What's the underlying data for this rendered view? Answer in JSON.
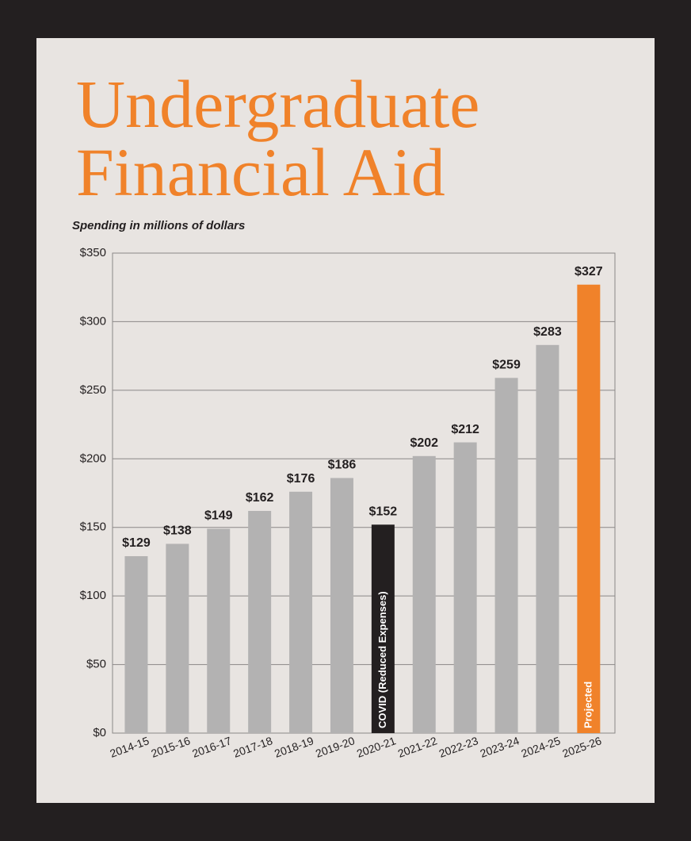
{
  "chart_data": {
    "type": "bar",
    "title": "Undergraduate Financial Aid",
    "subtitle": "Spending in millions of dollars",
    "categories": [
      "2014-15",
      "2015-16",
      "2016-17",
      "2017-18",
      "2018-19",
      "2019-20",
      "2020-21",
      "2021-22",
      "2022-23",
      "2023-24",
      "2024-25",
      "2025-26"
    ],
    "values": [
      129,
      138,
      149,
      162,
      176,
      186,
      152,
      202,
      212,
      259,
      283,
      327
    ],
    "value_labels": [
      "$129",
      "$138",
      "$149",
      "$162",
      "$176",
      "$186",
      "$152",
      "$202",
      "$212",
      "$259",
      "$283",
      "$327"
    ],
    "colors": [
      "#b3b2b2",
      "#b3b2b2",
      "#b3b2b2",
      "#b3b2b2",
      "#b3b2b2",
      "#b3b2b2",
      "#231f20",
      "#b3b2b2",
      "#b3b2b2",
      "#b3b2b2",
      "#b3b2b2",
      "#f0822a"
    ],
    "bar_labels": [
      null,
      null,
      null,
      null,
      null,
      null,
      "COVID (Reduced Expenses)",
      null,
      null,
      null,
      null,
      "Projected"
    ],
    "ylim": [
      0,
      350
    ],
    "yticks": [
      {
        "value": 0,
        "label": "$0"
      },
      {
        "value": 50,
        "label": "$50"
      },
      {
        "value": 100,
        "label": "$100"
      },
      {
        "value": 150,
        "label": "$150"
      },
      {
        "value": 200,
        "label": "$200"
      },
      {
        "value": 250,
        "label": "$250"
      },
      {
        "value": 300,
        "label": "$300"
      },
      {
        "value": 350,
        "label": "$350"
      }
    ],
    "grid": true
  }
}
